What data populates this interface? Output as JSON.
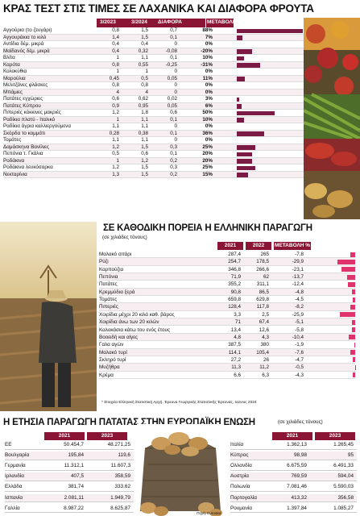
{
  "section1": {
    "title": "ΚΡΑΣ ΤΕΣΤ ΣΤΙΣ ΤΙΜΕΣ ΣΕ ΛΑΧΑΝΙΚΑ ΚΑΙ ΔΙΑΦΟΡΑ ΦΡΟΥΤΑ",
    "headers": [
      "3/2023",
      "3/2024",
      "ΔΙΑΦΟΡΑ",
      "ΜΕΤΑΒΟΛΗ"
    ],
    "rows": [
      {
        "name": "Αγγούρια (το ζευγάρι)",
        "v2023": "0,8",
        "v2024": "1,5",
        "diff": "0,7",
        "pct": "88%",
        "pct_value": 88
      },
      {
        "name": "Αγγουράκια το κιλό",
        "v2023": "1,4",
        "v2024": "1,5",
        "diff": "0,1",
        "pct": "7%",
        "pct_value": 7
      },
      {
        "name": "Αντίδια δέμ. μικρά",
        "v2023": "0,4",
        "v2024": "0,4",
        "diff": "0",
        "pct": "0%",
        "pct_value": 0
      },
      {
        "name": "Μαϊδανός δέμ. μικρά",
        "v2023": "0,4",
        "v2024": "0,32",
        "diff": "-0,08",
        "pct": "-20%",
        "pct_value": -20
      },
      {
        "name": "Βλίτα",
        "v2023": "1",
        "v2024": "1,1",
        "diff": "0,1",
        "pct": "10%",
        "pct_value": 10
      },
      {
        "name": "Καρότα",
        "v2023": "0,8",
        "v2024": "0,55",
        "diff": "-0,25",
        "pct": "-31%",
        "pct_value": -31
      },
      {
        "name": "Κολοκύθια",
        "v2023": "1",
        "v2024": "1",
        "diff": "0",
        "pct": "0%",
        "pct_value": 0
      },
      {
        "name": "Μαρούλια",
        "v2023": "0,45",
        "v2024": "0,5",
        "diff": "0,05",
        "pct": "11%",
        "pct_value": 11
      },
      {
        "name": "Μελιτζάνες φλάσκες",
        "v2023": "0,8",
        "v2024": "0,8",
        "diff": "0",
        "pct": "0%",
        "pct_value": 0
      },
      {
        "name": "Μπάμιες",
        "v2023": "4",
        "v2024": "4",
        "diff": "0",
        "pct": "0%",
        "pct_value": 0
      },
      {
        "name": "Πατάτες εγχώριες",
        "v2023": "0,6",
        "v2024": "0,62",
        "diff": "0,02",
        "pct": "3%",
        "pct_value": 3
      },
      {
        "name": "Πατάτες Κύπρου",
        "v2023": "0,9",
        "v2024": "0,95",
        "diff": "0,05",
        "pct": "6%",
        "pct_value": 6
      },
      {
        "name": "Πιπεριές κόκκινες μακριές",
        "v2023": "1,2",
        "v2024": "1,8",
        "diff": "0,6",
        "pct": "50%",
        "pct_value": 50
      },
      {
        "name": "Ραδίκια πλατύ - Ιταλικό",
        "v2023": "1",
        "v2024": "1,1",
        "diff": "0,1",
        "pct": "10%",
        "pct_value": 10
      },
      {
        "name": "Ραδίκια άγρια καλλιεργούμενα",
        "v2023": "1,1",
        "v2024": "1,1",
        "diff": "0",
        "pct": "0%",
        "pct_value": 0
      },
      {
        "name": "Σκόρδα το κομμάτι",
        "v2023": "0,28",
        "v2024": "0,38",
        "diff": "0,1",
        "pct": "36%",
        "pct_value": 36
      },
      {
        "name": "Τομάτες",
        "v2023": "1,1",
        "v2024": "1,1",
        "diff": "0",
        "pct": "0%",
        "pct_value": 0
      },
      {
        "name": "Δαμάσκηνα Βανίλιες",
        "v2023": "1,2",
        "v2024": "1,5",
        "diff": "0,3",
        "pct": "25%",
        "pct_value": 25
      },
      {
        "name": "Πεπόνια τ. Γκάλια",
        "v2023": "0,5",
        "v2024": "0,6",
        "diff": "0,1",
        "pct": "20%",
        "pct_value": 20
      },
      {
        "name": "Ροδάκινα",
        "v2023": "1",
        "v2024": "1,2",
        "diff": "0,2",
        "pct": "20%",
        "pct_value": 20
      },
      {
        "name": "Ροδάκινα λευκόσαρκα",
        "v2023": "1,2",
        "v2024": "1,5",
        "diff": "0,3",
        "pct": "25%",
        "pct_value": 25
      },
      {
        "name": "Νεκταρίνια",
        "v2023": "1,3",
        "v2024": "1,5",
        "diff": "0,2",
        "pct": "15%",
        "pct_value": 15
      }
    ]
  },
  "section2": {
    "title": "ΣΕ ΚΑΘΟΔΙΚΗ ΠΟΡΕΙΑ Η ΕΛΛΗΝΙΚΗ ΠΑΡΑΓΩΓΗ",
    "subtitle": "(σε χιλιάδες τόνους)",
    "headers": [
      "2021",
      "2022",
      "ΜΕΤΑΒΟΛΗ %"
    ],
    "rows": [
      {
        "name": "Μαλακό σιτάρι",
        "v2021": "287,4",
        "v2022": "265",
        "change": "-7,8",
        "change_value": -7.8
      },
      {
        "name": "Ρύζι",
        "v2021": "254,7",
        "v2022": "178,5",
        "change": "-29,9",
        "change_value": -29.9
      },
      {
        "name": "Καρπούζια",
        "v2021": "346,8",
        "v2022": "266,6",
        "change": "-23,1",
        "change_value": -23.1
      },
      {
        "name": "Πεπόνια",
        "v2021": "71,9",
        "v2022": "62",
        "change": "-13,7",
        "change_value": -13.7
      },
      {
        "name": "Πατάτες",
        "v2021": "355,2",
        "v2022": "311,1",
        "change": "-12,4",
        "change_value": -12.4
      },
      {
        "name": "Κρεμμύδια ξερά",
        "v2021": "90,8",
        "v2022": "86,5",
        "change": "-4,8",
        "change_value": -4.8
      },
      {
        "name": "Τομάτες",
        "v2021": "659,8",
        "v2022": "629,8",
        "change": "-4,5",
        "change_value": -4.5
      },
      {
        "name": "Πιπεριές",
        "v2021": "128,4",
        "v2022": "117,8",
        "change": "-8,2",
        "change_value": -8.2
      },
      {
        "name": "Χοιρίδια μέχρι 20 κιλά καθ. βάρος",
        "v2021": "3,3",
        "v2022": "2,5",
        "change": "-25,9",
        "change_value": -25.9
      },
      {
        "name": "Χοιρίδια άνω των 20 κιλών",
        "v2021": "71",
        "v2022": "67,4",
        "change": "-5,1",
        "change_value": -5.1
      },
      {
        "name": "Καλοκάσια κάτω του ενός έτους",
        "v2021": "13,4",
        "v2022": "12,6",
        "change": "-5,8",
        "change_value": -5.8
      },
      {
        "name": "Βοοειδή και αίγες",
        "v2021": "4,8",
        "v2022": "4,3",
        "change": "-10,4",
        "change_value": -10.4
      },
      {
        "name": "Γαλα αγών",
        "v2021": "387,5",
        "v2022": "380",
        "change": "-1,9",
        "change_value": -1.9
      },
      {
        "name": "Μαλακό τυρί",
        "v2021": "114,1",
        "v2022": "105,4",
        "change": "-7,6",
        "change_value": -7.6
      },
      {
        "name": "Σκληρό τυρί",
        "v2021": "27,2",
        "v2022": "26",
        "change": "-4,7",
        "change_value": -4.7
      },
      {
        "name": "Μυζήθρα",
        "v2021": "11,3",
        "v2022": "11,2",
        "change": "-0,5",
        "change_value": -0.5
      },
      {
        "name": "Κρέμα",
        "v2021": "6,6",
        "v2022": "6,3",
        "change": "-4,3",
        "change_value": -4.3
      }
    ],
    "source": "* Στοιχεία Ελληνική Στατιστική Αρχή, Έρευνα Γεωργικής Στατιστικής Έρευνας, Ιούνιος 2024"
  },
  "section3": {
    "title": "Η ΕΤΗΣΙΑ ΠΑΡΑΓΩΓΗ ΠΑΤΑΤΑΣ ΣΤΗΝ ΕΥΡΩΠΑΪΚΗ ΕΝΩΣΗ",
    "subtitle": "(σε χιλιάδες τόνους)",
    "headers": [
      "2021",
      "2023"
    ],
    "photo_credit": "Πηγή: Eurostat",
    "left_rows": [
      {
        "name": "ΕΕ",
        "v2021": "50.454,7",
        "v2023": "48.271,25"
      },
      {
        "name": "Βουλγαρία",
        "v2021": "195,84",
        "v2023": "119,6"
      },
      {
        "name": "Γερμανία",
        "v2021": "11.312,1",
        "v2023": "11.607,3"
      },
      {
        "name": "Ιρλανδία",
        "v2021": "407,5",
        "v2023": "358,59"
      },
      {
        "name": "Ελλάδα",
        "v2021": "381,74",
        "v2023": "333,62"
      },
      {
        "name": "Ισπανία",
        "v2021": "2.081,11",
        "v2023": "1.949,79"
      },
      {
        "name": "Γαλλία",
        "v2021": "8.987,22",
        "v2023": "8.625,87"
      }
    ],
    "right_rows": [
      {
        "name": "Ιταλία",
        "v2021": "1.362,13",
        "v2023": "1.265,45"
      },
      {
        "name": "Κύπρος",
        "v2021": "98,98",
        "v2023": "95"
      },
      {
        "name": "Ολλανδία",
        "v2021": "6.675,59",
        "v2023": "6.491,33"
      },
      {
        "name": "Αυστρία",
        "v2021": "769,59",
        "v2023": "594,04"
      },
      {
        "name": "Πολωνία",
        "v2021": "7.081,46",
        "v2023": "5.590,03"
      },
      {
        "name": "Πορτογαλία",
        "v2021": "413,32",
        "v2023": "356,58"
      },
      {
        "name": "Ρουμανία",
        "v2021": "1.397,84",
        "v2023": "1.085,27"
      }
    ]
  }
}
